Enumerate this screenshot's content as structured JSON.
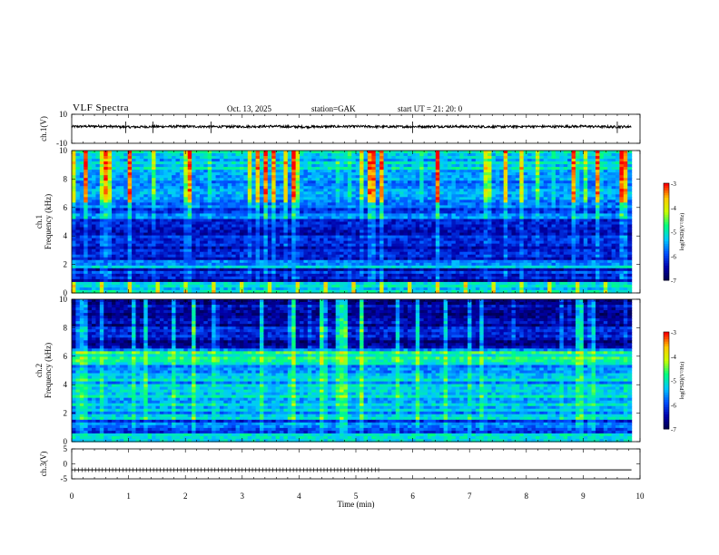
{
  "header": {
    "title": "VLF  Spectra",
    "date": "Oct. 13, 2025",
    "station": "station=GAK",
    "start_ut": "start  UT  =    21: 20: 0"
  },
  "colors": {
    "trace": "#000000",
    "colormap": [
      "#000044",
      "#0000aa",
      "#0050ff",
      "#00c8ff",
      "#00ff80",
      "#c8ff00",
      "#ffc800",
      "#ff0000",
      "#ffffff"
    ]
  },
  "chart_data": [
    {
      "type": "line",
      "panel": "ch1-waveform",
      "ylabel": "ch.1(V)",
      "ylim": [
        -10,
        10
      ],
      "yticks": [
        "10",
        "-10"
      ],
      "xlim": [
        0,
        10
      ],
      "x": [
        0,
        0.5,
        1,
        1.5,
        2,
        2.5,
        3,
        3.5,
        4,
        4.5,
        5,
        5.5,
        6,
        6.5,
        7,
        7.5,
        8,
        8.5,
        9,
        9.5,
        9.85
      ],
      "y": [
        1.5,
        1.8,
        1.2,
        1.5,
        1.6,
        1.4,
        1.5,
        1.7,
        1.3,
        1.5,
        1.6,
        1.4,
        1.5,
        1.6,
        1.5,
        1.4,
        1.6,
        1.5,
        1.7,
        1.3,
        1.5
      ]
    },
    {
      "type": "heatmap",
      "panel": "ch1-spectrogram",
      "ylabel_line1": "ch.1",
      "ylabel_line2": "Frequency  (kHz)",
      "ylim": [
        0,
        10
      ],
      "yticks": [
        "0",
        "2",
        "4",
        "6",
        "8",
        "10"
      ],
      "xlim": [
        0,
        10
      ],
      "colorbar": {
        "label": "log(PSD)(V²/Hz)",
        "range": [
          -7,
          -3
        ],
        "ticks": [
          "-3",
          "-4",
          "-5",
          "-6",
          "-7"
        ]
      }
    },
    {
      "type": "heatmap",
      "panel": "ch2-spectrogram",
      "ylabel_line1": "ch.2",
      "ylabel_line2": "Frequency  (kHz)",
      "ylim": [
        0,
        10
      ],
      "yticks": [
        "0",
        "2",
        "4",
        "6",
        "8",
        "10"
      ],
      "xlim": [
        0,
        10
      ],
      "colorbar": {
        "label": "log(PSD)(V²/Hz)",
        "range": [
          -7,
          -3
        ],
        "ticks": [
          "-3",
          "-4",
          "-5",
          "-6",
          "-7"
        ]
      }
    },
    {
      "type": "line",
      "panel": "ch3-waveform",
      "ylabel": "ch.3(V)",
      "ylim": [
        -5,
        5
      ],
      "yticks": [
        "5",
        "0",
        "-5"
      ],
      "xlim": [
        0,
        10
      ],
      "xlabel": "Time  (min)",
      "xticks": [
        "0",
        "1",
        "2",
        "3",
        "4",
        "5",
        "6",
        "7",
        "8",
        "9",
        "10"
      ],
      "x": [
        0,
        5.4,
        9.85
      ],
      "y": [
        -2,
        -2,
        -2
      ],
      "marker_segment_until": 5.4
    }
  ]
}
